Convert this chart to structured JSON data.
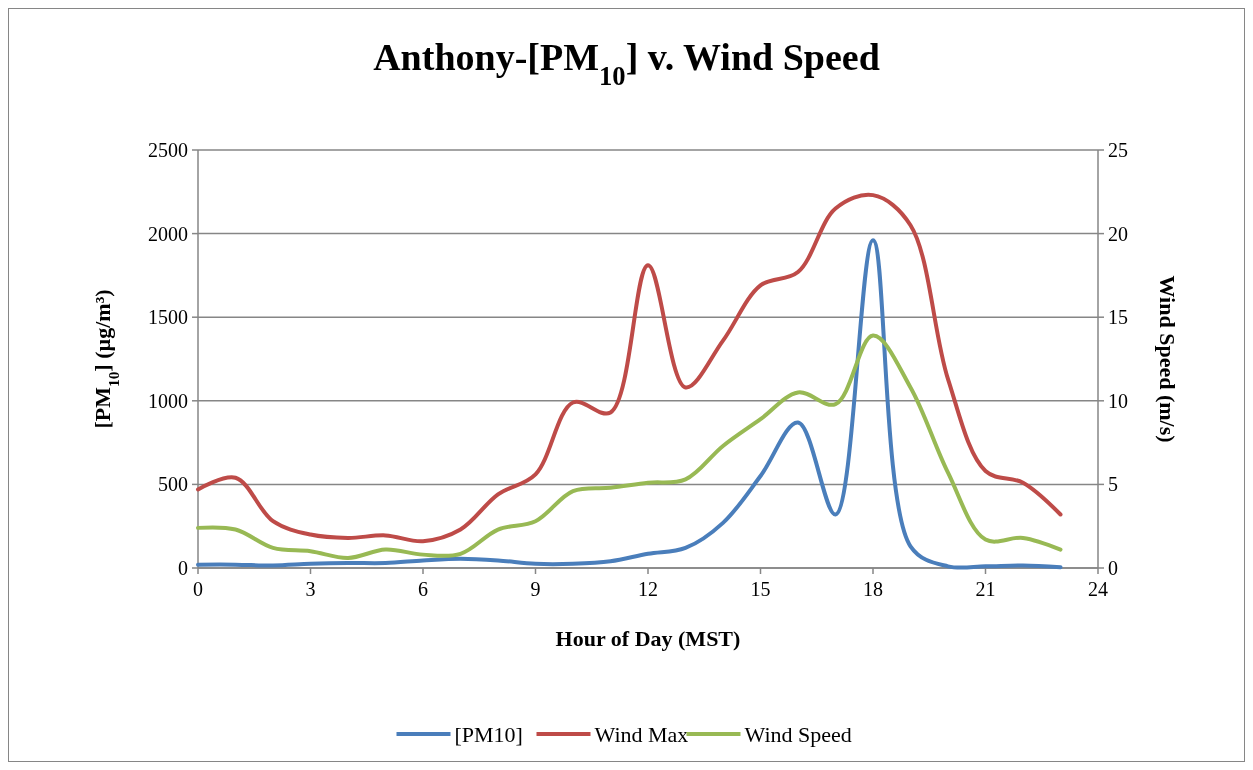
{
  "chart_data": {
    "type": "line",
    "title": "Anthony-[PM$_{10}$] v. Wind Speed",
    "xlabel": "Hour of Day (MST)",
    "ylabel": "[PM$_{10}$] (µg/m³)",
    "y2label": "Wind Speed (m/s)",
    "x": [
      0,
      1,
      2,
      3,
      4,
      5,
      6,
      7,
      8,
      9,
      10,
      11,
      12,
      13,
      14,
      15,
      16,
      17,
      18,
      19,
      20,
      21,
      22,
      23
    ],
    "xlim": [
      0,
      24
    ],
    "xticks": [
      0,
      3,
      6,
      9,
      12,
      15,
      18,
      21,
      24
    ],
    "ylim": [
      0,
      2500
    ],
    "yticks": [
      0,
      500,
      1000,
      1500,
      2000,
      2500
    ],
    "y2lim": [
      0,
      25
    ],
    "y2ticks": [
      0,
      5,
      10,
      15,
      20,
      25
    ],
    "grid": "y",
    "legend": "bottom",
    "marker": "none",
    "line_style": "solid",
    "series": [
      {
        "name": "[PM10]",
        "color": "#4a7ebb",
        "values": [
          20,
          20,
          15,
          25,
          30,
          30,
          45,
          55,
          45,
          25,
          25,
          40,
          85,
          120,
          270,
          550,
          870,
          320,
          1960,
          130,
          10,
          10,
          15,
          5
        ]
      },
      {
        "name": "Wind Max",
        "color": "#be4b48",
        "axis": "y2",
        "values": [
          4.7,
          5.4,
          2.8,
          2.0,
          1.8,
          1.95,
          1.6,
          2.3,
          4.4,
          5.6,
          9.9,
          9.3,
          18.1,
          10.8,
          13.6,
          16.9,
          17.7,
          21.5,
          22.3,
          20.5,
          11.3,
          5.8,
          5.1,
          3.2
        ]
      },
      {
        "name": "Wind Speed",
        "color": "#98b954",
        "axis": "y2",
        "values": [
          2.4,
          2.3,
          1.2,
          1.0,
          0.6,
          1.1,
          0.8,
          0.85,
          2.3,
          2.8,
          4.6,
          4.8,
          5.1,
          5.3,
          7.3,
          8.9,
          10.5,
          9.8,
          13.9,
          10.8,
          5.7,
          1.7,
          1.8,
          1.1
        ]
      }
    ]
  }
}
